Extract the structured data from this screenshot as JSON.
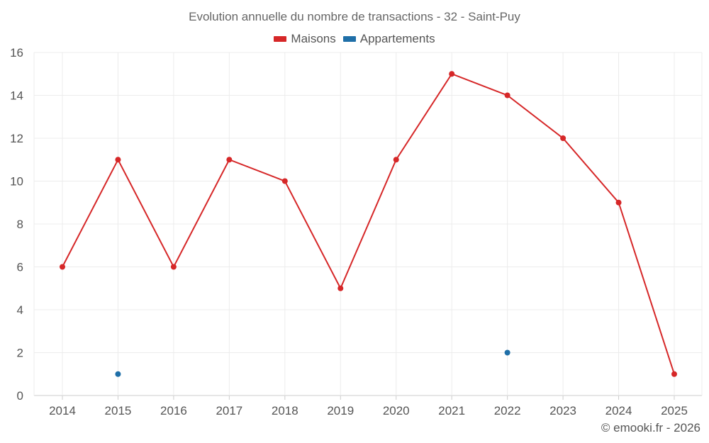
{
  "chart_data": {
    "type": "line",
    "title": "Evolution annuelle du nombre de transactions - 32 - Saint-Puy",
    "categories": [
      "2014",
      "2015",
      "2016",
      "2017",
      "2018",
      "2019",
      "2020",
      "2021",
      "2022",
      "2023",
      "2024",
      "2025"
    ],
    "series": [
      {
        "name": "Maisons",
        "color": "#d62728",
        "values": [
          6,
          11,
          6,
          11,
          10,
          5,
          11,
          15,
          14,
          12,
          9,
          1
        ]
      },
      {
        "name": "Appartements",
        "color": "#1f6fa8",
        "values": [
          null,
          1,
          null,
          null,
          null,
          null,
          null,
          null,
          2,
          null,
          null,
          null
        ]
      }
    ],
    "ylim": [
      0,
      16
    ],
    "yticks": [
      "0",
      "2",
      "4",
      "6",
      "8",
      "10",
      "12",
      "14",
      "16"
    ],
    "grid": true,
    "legend_position": "top"
  },
  "footer": {
    "credit": "© emooki.fr - 2026"
  }
}
